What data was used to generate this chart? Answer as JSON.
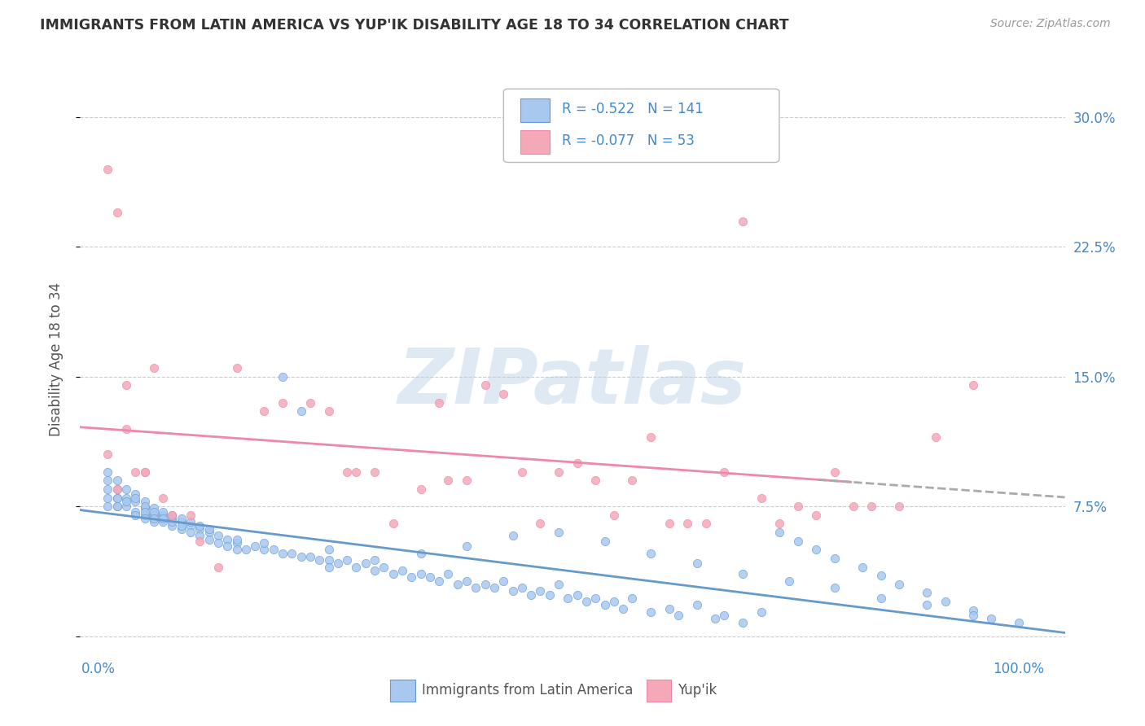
{
  "title": "IMMIGRANTS FROM LATIN AMERICA VS YUP'IK DISABILITY AGE 18 TO 34 CORRELATION CHART",
  "source": "Source: ZipAtlas.com",
  "ylabel": "Disability Age 18 to 34",
  "yticks": [
    0.0,
    0.075,
    0.15,
    0.225,
    0.3
  ],
  "ytick_labels": [
    "",
    "7.5%",
    "15.0%",
    "22.5%",
    "30.0%"
  ],
  "r_latin": -0.522,
  "n_latin": 141,
  "r_yupik": -0.077,
  "n_yupik": 53,
  "color_latin": "#a8c8f0",
  "color_latin_line": "#6699cc",
  "color_yupik": "#f5a8b8",
  "color_yupik_line": "#ee88aa",
  "watermark": "ZIPatlas",
  "background": "#ffffff",
  "grid_color": "#cccccc",
  "title_color": "#333333",
  "axis_label_color": "#4488cc",
  "tick_label_color": "#4488cc",
  "latin_x": [
    0.01,
    0.01,
    0.01,
    0.01,
    0.01,
    0.02,
    0.02,
    0.02,
    0.02,
    0.02,
    0.02,
    0.03,
    0.03,
    0.03,
    0.03,
    0.04,
    0.04,
    0.04,
    0.04,
    0.04,
    0.05,
    0.05,
    0.05,
    0.05,
    0.05,
    0.05,
    0.06,
    0.06,
    0.06,
    0.06,
    0.06,
    0.07,
    0.07,
    0.07,
    0.07,
    0.08,
    0.08,
    0.08,
    0.08,
    0.09,
    0.09,
    0.09,
    0.09,
    0.1,
    0.1,
    0.1,
    0.11,
    0.11,
    0.11,
    0.12,
    0.12,
    0.12,
    0.13,
    0.13,
    0.14,
    0.14,
    0.15,
    0.15,
    0.15,
    0.16,
    0.17,
    0.18,
    0.18,
    0.19,
    0.2,
    0.2,
    0.21,
    0.22,
    0.22,
    0.23,
    0.24,
    0.25,
    0.25,
    0.26,
    0.27,
    0.28,
    0.29,
    0.3,
    0.31,
    0.32,
    0.33,
    0.34,
    0.35,
    0.36,
    0.37,
    0.38,
    0.39,
    0.4,
    0.41,
    0.42,
    0.43,
    0.44,
    0.45,
    0.46,
    0.47,
    0.48,
    0.49,
    0.5,
    0.51,
    0.52,
    0.53,
    0.54,
    0.55,
    0.56,
    0.57,
    0.58,
    0.6,
    0.62,
    0.63,
    0.65,
    0.67,
    0.68,
    0.7,
    0.72,
    0.74,
    0.76,
    0.78,
    0.8,
    0.83,
    0.85,
    0.87,
    0.9,
    0.92,
    0.95,
    0.97,
    1.0,
    0.55,
    0.6,
    0.65,
    0.7,
    0.75,
    0.8,
    0.85,
    0.9,
    0.95,
    0.5,
    0.45,
    0.4,
    0.35,
    0.3,
    0.25
  ],
  "latin_y": [
    0.095,
    0.085,
    0.08,
    0.09,
    0.075,
    0.09,
    0.085,
    0.08,
    0.075,
    0.08,
    0.075,
    0.085,
    0.08,
    0.075,
    0.078,
    0.082,
    0.078,
    0.072,
    0.08,
    0.07,
    0.078,
    0.074,
    0.07,
    0.075,
    0.072,
    0.068,
    0.074,
    0.07,
    0.066,
    0.072,
    0.068,
    0.07,
    0.066,
    0.072,
    0.068,
    0.068,
    0.064,
    0.07,
    0.066,
    0.066,
    0.062,
    0.068,
    0.064,
    0.064,
    0.06,
    0.066,
    0.062,
    0.058,
    0.064,
    0.06,
    0.056,
    0.062,
    0.058,
    0.054,
    0.056,
    0.052,
    0.054,
    0.05,
    0.056,
    0.05,
    0.052,
    0.05,
    0.054,
    0.05,
    0.15,
    0.048,
    0.048,
    0.13,
    0.046,
    0.046,
    0.044,
    0.044,
    0.05,
    0.042,
    0.044,
    0.04,
    0.042,
    0.038,
    0.04,
    0.036,
    0.038,
    0.034,
    0.036,
    0.034,
    0.032,
    0.036,
    0.03,
    0.032,
    0.028,
    0.03,
    0.028,
    0.032,
    0.026,
    0.028,
    0.024,
    0.026,
    0.024,
    0.03,
    0.022,
    0.024,
    0.02,
    0.022,
    0.018,
    0.02,
    0.016,
    0.022,
    0.014,
    0.016,
    0.012,
    0.018,
    0.01,
    0.012,
    0.008,
    0.014,
    0.06,
    0.055,
    0.05,
    0.045,
    0.04,
    0.035,
    0.03,
    0.025,
    0.02,
    0.015,
    0.01,
    0.008,
    0.055,
    0.048,
    0.042,
    0.036,
    0.032,
    0.028,
    0.022,
    0.018,
    0.012,
    0.06,
    0.058,
    0.052,
    0.048,
    0.044,
    0.04
  ],
  "yupik_x": [
    0.01,
    0.01,
    0.02,
    0.02,
    0.03,
    0.03,
    0.04,
    0.05,
    0.05,
    0.06,
    0.07,
    0.08,
    0.1,
    0.11,
    0.13,
    0.15,
    0.18,
    0.2,
    0.23,
    0.25,
    0.27,
    0.28,
    0.3,
    0.32,
    0.35,
    0.37,
    0.38,
    0.4,
    0.42,
    0.44,
    0.46,
    0.48,
    0.5,
    0.52,
    0.54,
    0.56,
    0.58,
    0.6,
    0.62,
    0.64,
    0.66,
    0.68,
    0.7,
    0.72,
    0.74,
    0.76,
    0.78,
    0.8,
    0.82,
    0.84,
    0.87,
    0.91,
    0.95
  ],
  "yupik_y": [
    0.105,
    0.27,
    0.085,
    0.245,
    0.12,
    0.145,
    0.095,
    0.095,
    0.095,
    0.155,
    0.08,
    0.07,
    0.07,
    0.055,
    0.04,
    0.155,
    0.13,
    0.135,
    0.135,
    0.13,
    0.095,
    0.095,
    0.095,
    0.065,
    0.085,
    0.135,
    0.09,
    0.09,
    0.145,
    0.14,
    0.095,
    0.065,
    0.095,
    0.1,
    0.09,
    0.07,
    0.09,
    0.115,
    0.065,
    0.065,
    0.065,
    0.095,
    0.24,
    0.08,
    0.065,
    0.075,
    0.07,
    0.095,
    0.075,
    0.075,
    0.075,
    0.115,
    0.145
  ]
}
